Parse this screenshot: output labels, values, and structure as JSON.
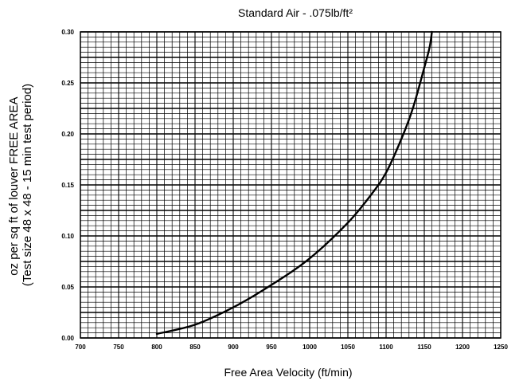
{
  "chart_data": {
    "type": "line",
    "title": "Standard Air - .075lb/ft²",
    "xlabel": "Free Area Velocity (ft/min)",
    "ylabel": [
      "oz per sq ft of louver FREE AREA",
      "(Test size 48 x 48 - 15 min test period)"
    ],
    "xlim": [
      700,
      1250
    ],
    "ylim": [
      0,
      0.3
    ],
    "x_ticks": [
      700,
      750,
      800,
      850,
      900,
      950,
      1000,
      1050,
      1100,
      1150,
      1200,
      1250
    ],
    "x_tick_labels": [
      "700",
      "750",
      "800",
      "850",
      "900",
      "950",
      "1000",
      "1050",
      "1100",
      "1150",
      "1200",
      "1250"
    ],
    "y_ticks": [
      0,
      0.05,
      0.1,
      0.15,
      0.2,
      0.25,
      0.3
    ],
    "y_tick_labels": [
      "0.00",
      "0.05",
      "0.10",
      "0.15",
      "0.20",
      "0.25",
      "0.30"
    ],
    "grid": true,
    "legend": "none",
    "series": [
      {
        "x": [
          800,
          850,
          900,
          950,
          1000,
          1050,
          1080,
          1100,
          1120,
          1135,
          1150,
          1157,
          1160
        ],
        "y": [
          0.004,
          0.013,
          0.03,
          0.052,
          0.078,
          0.113,
          0.14,
          0.162,
          0.195,
          0.225,
          0.265,
          0.285,
          0.3
        ]
      }
    ]
  }
}
